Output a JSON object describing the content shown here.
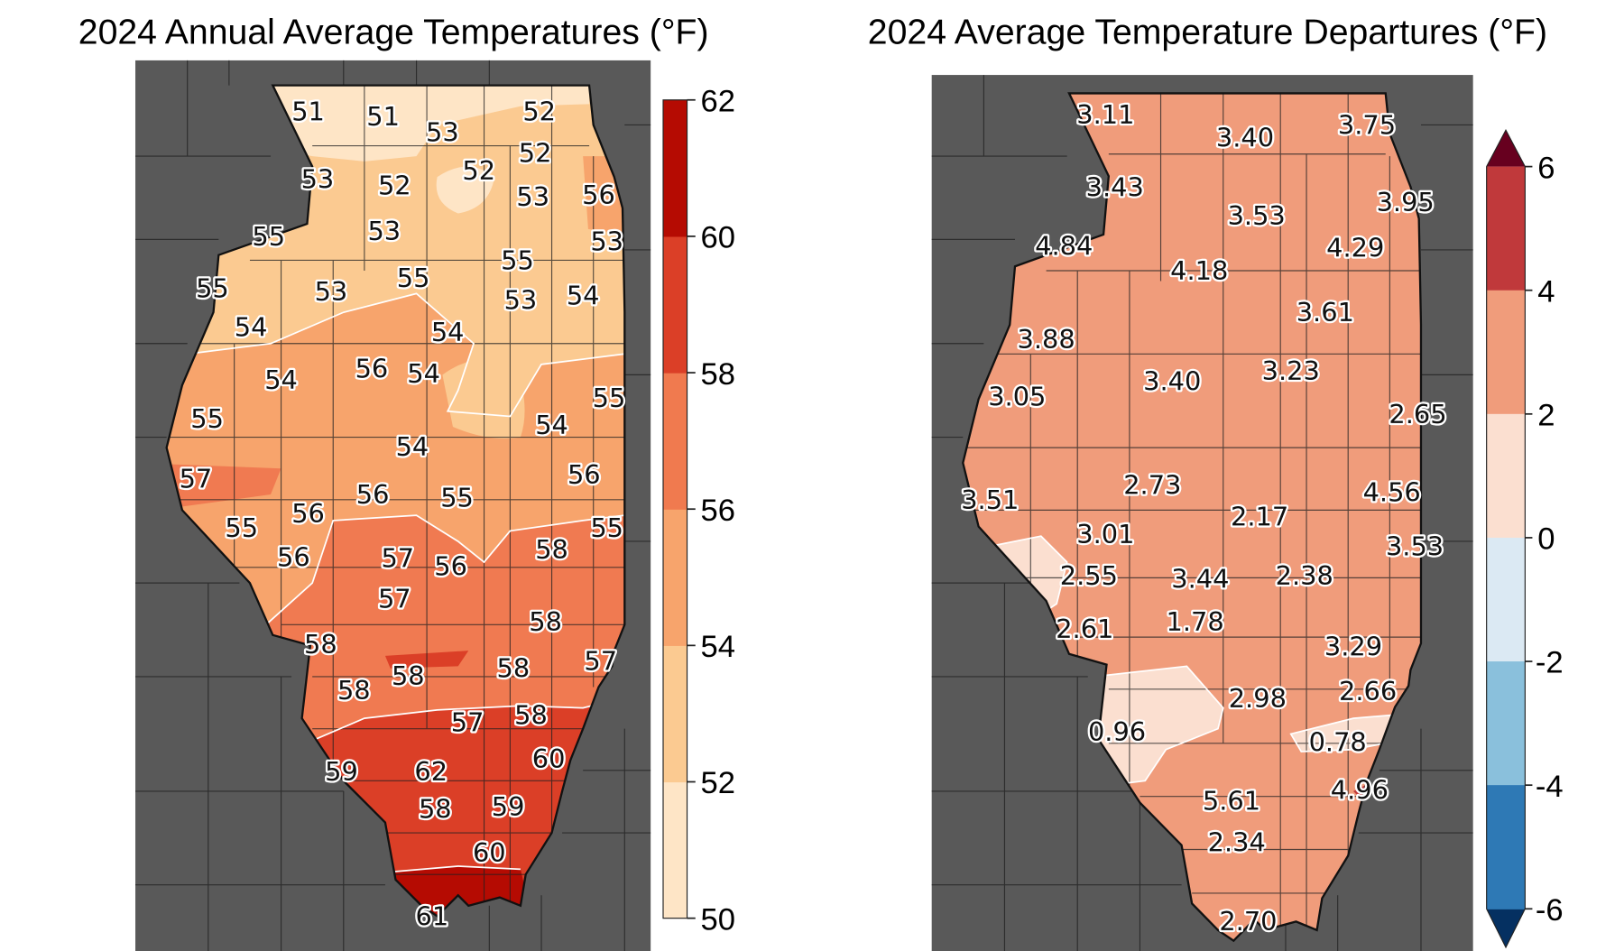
{
  "chart_data": [
    {
      "type": "map",
      "title": "2024 Annual Average Temperatures (°F)",
      "colorbar": {
        "ticks": [
          "50",
          "52",
          "54",
          "56",
          "58",
          "60",
          "62"
        ],
        "range": [
          50,
          62
        ],
        "colors": [
          "#fee5c6",
          "#fbca91",
          "#f7a46c",
          "#f07a4f",
          "#db3f27",
          "#b50b02"
        ]
      },
      "station_values": [
        "51",
        "51",
        "53",
        "52",
        "52",
        "52",
        "53",
        "52",
        "53",
        "56",
        "55",
        "53",
        "53",
        "55",
        "55",
        "53",
        "55",
        "53",
        "54",
        "54",
        "54",
        "56",
        "54",
        "54",
        "55",
        "55",
        "54",
        "54",
        "57",
        "56",
        "56",
        "55",
        "56",
        "55",
        "55",
        "58",
        "56",
        "57",
        "56",
        "57",
        "58",
        "58",
        "57",
        "58",
        "58",
        "58",
        "57",
        "58",
        "60",
        "59",
        "62",
        "58",
        "59",
        "60",
        "61"
      ]
    },
    {
      "type": "map",
      "title": "2024 Average Temperature Departures (°F)",
      "colorbar": {
        "ticks": [
          "6",
          "4",
          "2",
          "0",
          "-2",
          "-4",
          "-6"
        ],
        "range": [
          -6,
          6
        ],
        "colors": [
          "#c0393b",
          "#f09c7b",
          "#fbdfd0",
          "#dbe9f3",
          "#8ac0dc",
          "#2e79b5"
        ],
        "extend_colors": {
          "over": "#67001f",
          "under": "#053061"
        }
      },
      "station_values": [
        "3.11",
        "3.40",
        "3.75",
        "3.43",
        "3.53",
        "3.95",
        "4.84",
        "4.29",
        "4.18",
        "3.61",
        "3.88",
        "3.23",
        "3.40",
        "3.05",
        "2.65",
        "2.73",
        "4.56",
        "3.51",
        "2.17",
        "3.01",
        "3.53",
        "2.55",
        "3.44",
        "2.38",
        "2.61",
        "1.78",
        "3.29",
        "2.66",
        "2.98",
        "0.96",
        "0.78",
        "4.96",
        "5.61",
        "2.34",
        "2.70"
      ]
    }
  ],
  "colors": {
    "background_land": "#595959",
    "county_lines": "#222222",
    "contour_lines": "#ffffff"
  }
}
